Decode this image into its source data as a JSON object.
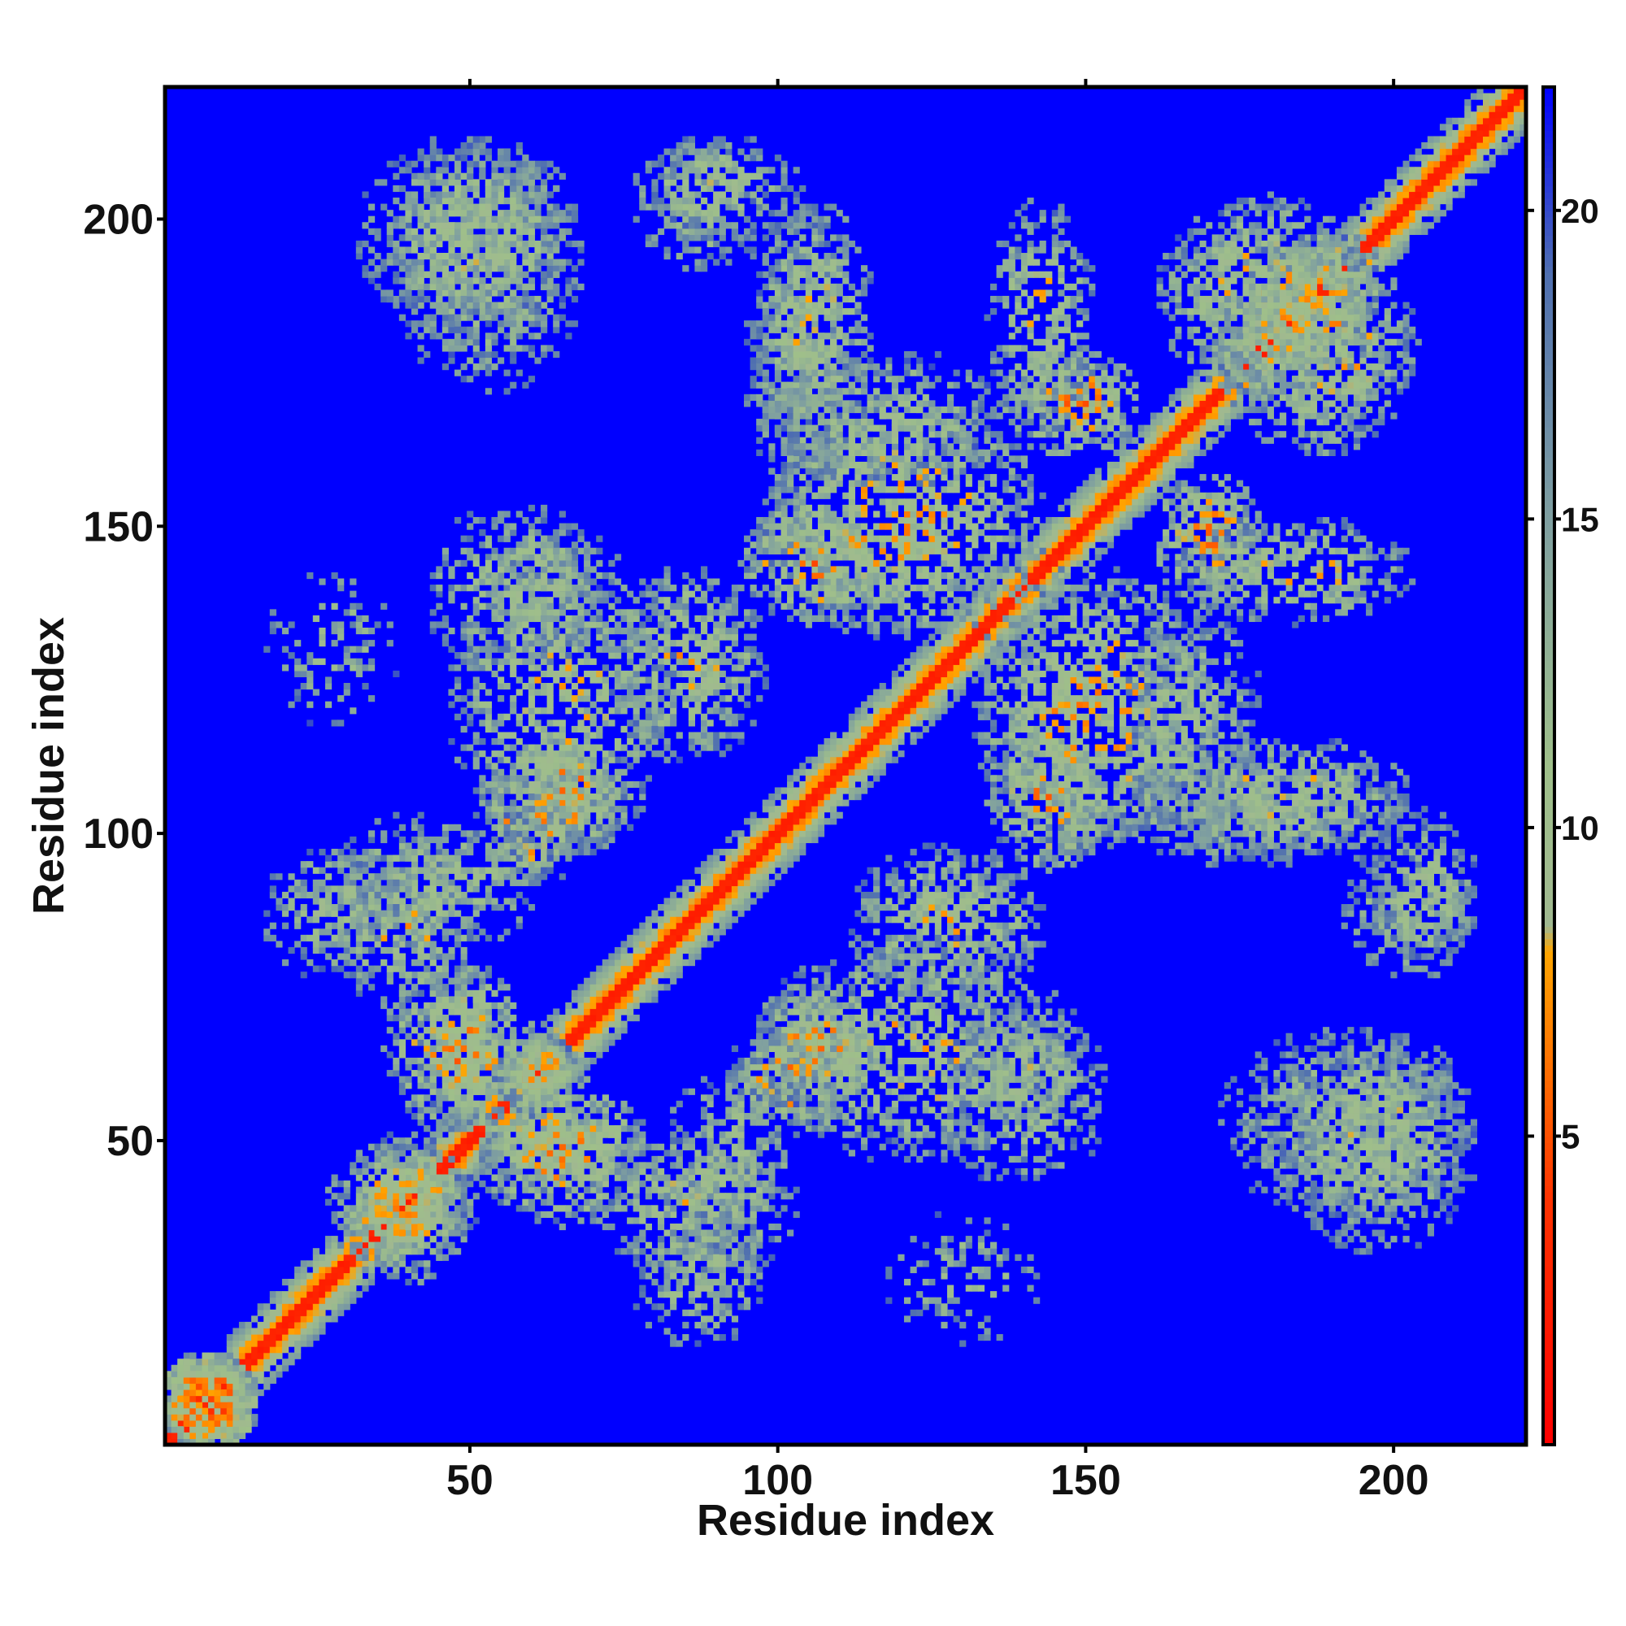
{
  "chart_data": {
    "type": "heatmap",
    "title": "",
    "xlabel": "Residue index",
    "ylabel": "Residue index",
    "n_residues": 221,
    "xlim": [
      1,
      221
    ],
    "ylim": [
      1,
      221
    ],
    "x_ticks": [
      {
        "value": 50,
        "label": "50"
      },
      {
        "value": 100,
        "label": "100"
      },
      {
        "value": 150,
        "label": "150"
      },
      {
        "value": 200,
        "label": "200"
      }
    ],
    "y_ticks": [
      {
        "value": 50,
        "label": "50"
      },
      {
        "value": 100,
        "label": "100"
      },
      {
        "value": 150,
        "label": "150"
      },
      {
        "value": 200,
        "label": "200"
      }
    ],
    "colorbar": {
      "range": [
        0,
        22
      ],
      "ticks": [
        {
          "value": 5,
          "label": "5"
        },
        {
          "value": 10,
          "label": "10"
        },
        {
          "value": 15,
          "label": "15"
        },
        {
          "value": 20,
          "label": "20"
        }
      ],
      "stops": [
        {
          "value": 0,
          "color": "#ff0000"
        },
        {
          "value": 4,
          "color": "#ff3300"
        },
        {
          "value": 8,
          "color": "#ffa500"
        },
        {
          "value": 8.4,
          "color": "#a0b890"
        },
        {
          "value": 11,
          "color": "#9fbf8a"
        },
        {
          "value": 15,
          "color": "#7f9fa0"
        },
        {
          "value": 19,
          "color": "#4f6fb0"
        },
        {
          "value": 22,
          "color": "#0000ff"
        }
      ],
      "background_color": "#0000ff"
    },
    "diagonal_band_halfwidth": 4,
    "contact_regions": [
      {
        "i_range": [
          3,
          12
        ],
        "j_range": [
          3,
          12
        ],
        "min_distance": 3,
        "density": 0.9
      },
      {
        "i_range": [
          33,
          46
        ],
        "j_range": [
          30,
          48
        ],
        "min_distance": 6,
        "density": 0.55
      },
      {
        "i_range": [
          40,
          52
        ],
        "j_range": [
          55,
          75
        ],
        "min_distance": 6,
        "density": 0.6
      },
      {
        "i_range": [
          57,
          63
        ],
        "j_range": [
          58,
          65
        ],
        "min_distance": 5,
        "density": 0.7
      },
      {
        "i_range": [
          55,
          75
        ],
        "j_range": [
          45,
          55
        ],
        "min_distance": 5,
        "density": 0.65
      },
      {
        "i_range": [
          75,
          95
        ],
        "j_range": [
          30,
          48
        ],
        "min_distance": 7,
        "density": 0.55
      },
      {
        "i_range": [
          95,
          110
        ],
        "j_range": [
          55,
          65
        ],
        "min_distance": 5,
        "density": 0.7
      },
      {
        "i_range": [
          100,
          112
        ],
        "j_range": [
          60,
          72
        ],
        "min_distance": 5,
        "density": 0.75
      },
      {
        "i_range": [
          115,
          140
        ],
        "j_range": [
          75,
          95
        ],
        "min_distance": 7,
        "density": 0.55
      },
      {
        "i_range": [
          135,
          148
        ],
        "j_range": [
          55,
          70
        ],
        "min_distance": 8,
        "density": 0.45
      },
      {
        "i_range": [
          138,
          150
        ],
        "j_range": [
          98,
          112
        ],
        "min_distance": 5,
        "density": 0.7
      },
      {
        "i_range": [
          155,
          200
        ],
        "j_range": [
          98,
          108
        ],
        "min_distance": 8,
        "density": 0.5
      },
      {
        "i_range": [
          165,
          175
        ],
        "j_range": [
          140,
          155
        ],
        "min_distance": 5,
        "density": 0.65
      },
      {
        "i_range": [
          175,
          210
        ],
        "j_range": [
          40,
          65
        ],
        "min_distance": 8,
        "density": 0.55
      },
      {
        "i_range": [
          195,
          210
        ],
        "j_range": [
          80,
          95
        ],
        "min_distance": 8,
        "density": 0.45
      },
      {
        "i_range": [
          35,
          65
        ],
        "j_range": [
          185,
          210
        ],
        "min_distance": 8,
        "density": 0.6
      },
      {
        "i_range": [
          80,
          100
        ],
        "j_range": [
          200,
          210
        ],
        "min_distance": 8,
        "density": 0.5
      },
      {
        "i_range": [
          100,
          112
        ],
        "j_range": [
          165,
          200
        ],
        "min_distance": 7,
        "density": 0.5
      },
      {
        "i_range": [
          138,
          148
        ],
        "j_range": [
          168,
          200
        ],
        "min_distance": 7,
        "density": 0.5
      },
      {
        "i_range": [
          100,
          140
        ],
        "j_range": [
          135,
          168
        ],
        "min_distance": 6,
        "density": 0.55
      },
      {
        "i_range": [
          50,
          80
        ],
        "j_range": [
          100,
          145
        ],
        "min_distance": 7,
        "density": 0.45
      },
      {
        "i_range": [
          30,
          60
        ],
        "j_range": [
          85,
          100
        ],
        "min_distance": 8,
        "density": 0.45
      },
      {
        "i_range": [
          45,
          70
        ],
        "j_range": [
          130,
          150
        ],
        "min_distance": 8,
        "density": 0.45
      },
      {
        "i_range": [
          165,
          195
        ],
        "j_range": [
          175,
          200
        ],
        "min_distance": 6,
        "density": 0.6
      },
      {
        "i_range": [
          120,
          140
        ],
        "j_range": [
          20,
          35
        ],
        "min_distance": 9,
        "density": 0.3
      },
      {
        "i_range": [
          80,
          95
        ],
        "j_range": [
          20,
          35
        ],
        "min_distance": 8,
        "density": 0.45
      },
      {
        "i_range": [
          160,
          175
        ],
        "j_range": [
          100,
          135
        ],
        "min_distance": 8,
        "density": 0.45
      }
    ]
  }
}
